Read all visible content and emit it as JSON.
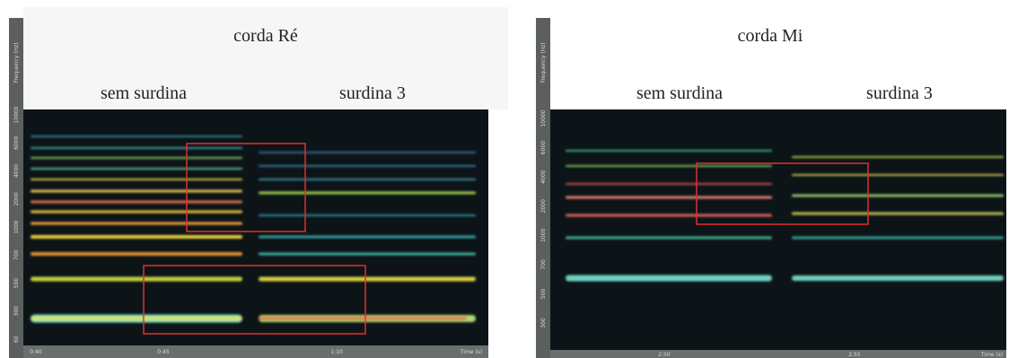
{
  "panels": [
    {
      "title": "corda Ré",
      "labels": [
        "sem surdina",
        "surdina 3"
      ],
      "y_axis_label": "Frequency (Hz)",
      "y_tick_labels": [
        "10000",
        "6000",
        "4000",
        "2000",
        "1000",
        "700",
        "500",
        "300",
        "60"
      ],
      "x_tick_labels": [
        "0:40",
        "0:45",
        "1:10",
        "Time (s)"
      ]
    },
    {
      "title": "corda Mi",
      "labels": [
        "sem surdina",
        "surdina 3"
      ],
      "y_axis_label": "Frequency (Hz)",
      "y_tick_labels": [
        "10000",
        "6000",
        "4000",
        "2000",
        "1000",
        "700",
        "500",
        "300"
      ],
      "x_tick_labels": [
        "2:50",
        "2:55",
        "Time (s)"
      ]
    }
  ]
}
